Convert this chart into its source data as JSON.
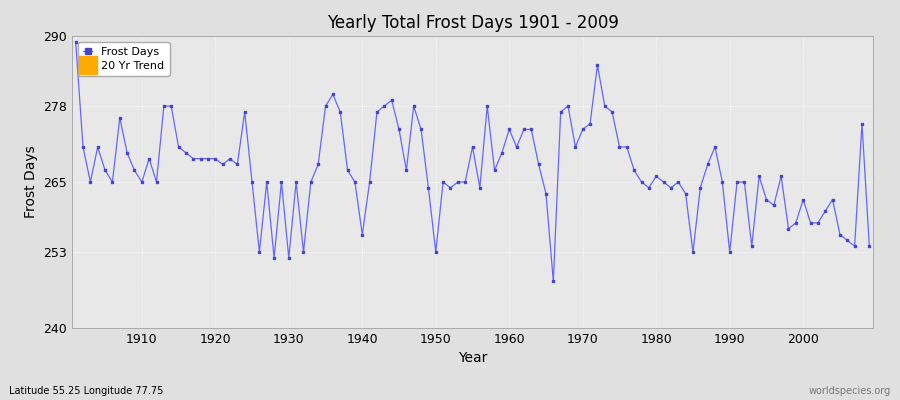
{
  "title": "Yearly Total Frost Days 1901 - 2009",
  "xlabel": "Year",
  "ylabel": "Frost Days",
  "lat_lon_label": "Latitude 55.25 Longitude 77.75",
  "watermark": "worldspecies.org",
  "ylim": [
    240,
    290
  ],
  "yticks": [
    240,
    253,
    265,
    278,
    290
  ],
  "xlim": [
    1901,
    2009
  ],
  "line_color": "#6666ff",
  "marker_color": "#4444cc",
  "legend_frost_color": "#4444cc",
  "legend_trend_color": "#ffaa00",
  "fig_bg_color": "#e0e0e0",
  "plot_bg_color": "#e8e8e8",
  "years": [
    1901,
    1902,
    1903,
    1904,
    1905,
    1906,
    1907,
    1908,
    1909,
    1910,
    1911,
    1912,
    1913,
    1914,
    1915,
    1916,
    1917,
    1918,
    1919,
    1920,
    1921,
    1922,
    1923,
    1924,
    1925,
    1926,
    1927,
    1928,
    1929,
    1930,
    1931,
    1932,
    1933,
    1934,
    1935,
    1936,
    1937,
    1938,
    1939,
    1940,
    1941,
    1942,
    1943,
    1944,
    1945,
    1946,
    1947,
    1948,
    1949,
    1950,
    1951,
    1952,
    1953,
    1954,
    1955,
    1956,
    1957,
    1958,
    1959,
    1960,
    1961,
    1962,
    1963,
    1964,
    1965,
    1966,
    1967,
    1968,
    1969,
    1970,
    1971,
    1972,
    1973,
    1974,
    1975,
    1976,
    1977,
    1978,
    1979,
    1980,
    1981,
    1982,
    1983,
    1984,
    1985,
    1986,
    1987,
    1988,
    1989,
    1990,
    1991,
    1992,
    1993,
    1994,
    1995,
    1996,
    1997,
    1998,
    1999,
    2000,
    2001,
    2002,
    2003,
    2004,
    2005,
    2006,
    2007,
    2008,
    2009
  ],
  "values": [
    289,
    271,
    265,
    271,
    267,
    265,
    276,
    270,
    267,
    265,
    269,
    265,
    278,
    278,
    271,
    270,
    269,
    269,
    269,
    269,
    268,
    269,
    268,
    277,
    265,
    253,
    265,
    252,
    265,
    252,
    265,
    253,
    265,
    268,
    278,
    280,
    277,
    267,
    265,
    256,
    265,
    277,
    278,
    279,
    274,
    267,
    278,
    274,
    264,
    253,
    265,
    264,
    265,
    265,
    271,
    264,
    278,
    267,
    270,
    274,
    271,
    274,
    274,
    268,
    263,
    248,
    277,
    278,
    271,
    274,
    275,
    285,
    278,
    277,
    271,
    271,
    267,
    265,
    264,
    266,
    265,
    264,
    265,
    263,
    253,
    264,
    268,
    271,
    265,
    253,
    265,
    265,
    254,
    266,
    262,
    261,
    266,
    257,
    258,
    262,
    258,
    258,
    260,
    262,
    256,
    255,
    254,
    275,
    254
  ]
}
